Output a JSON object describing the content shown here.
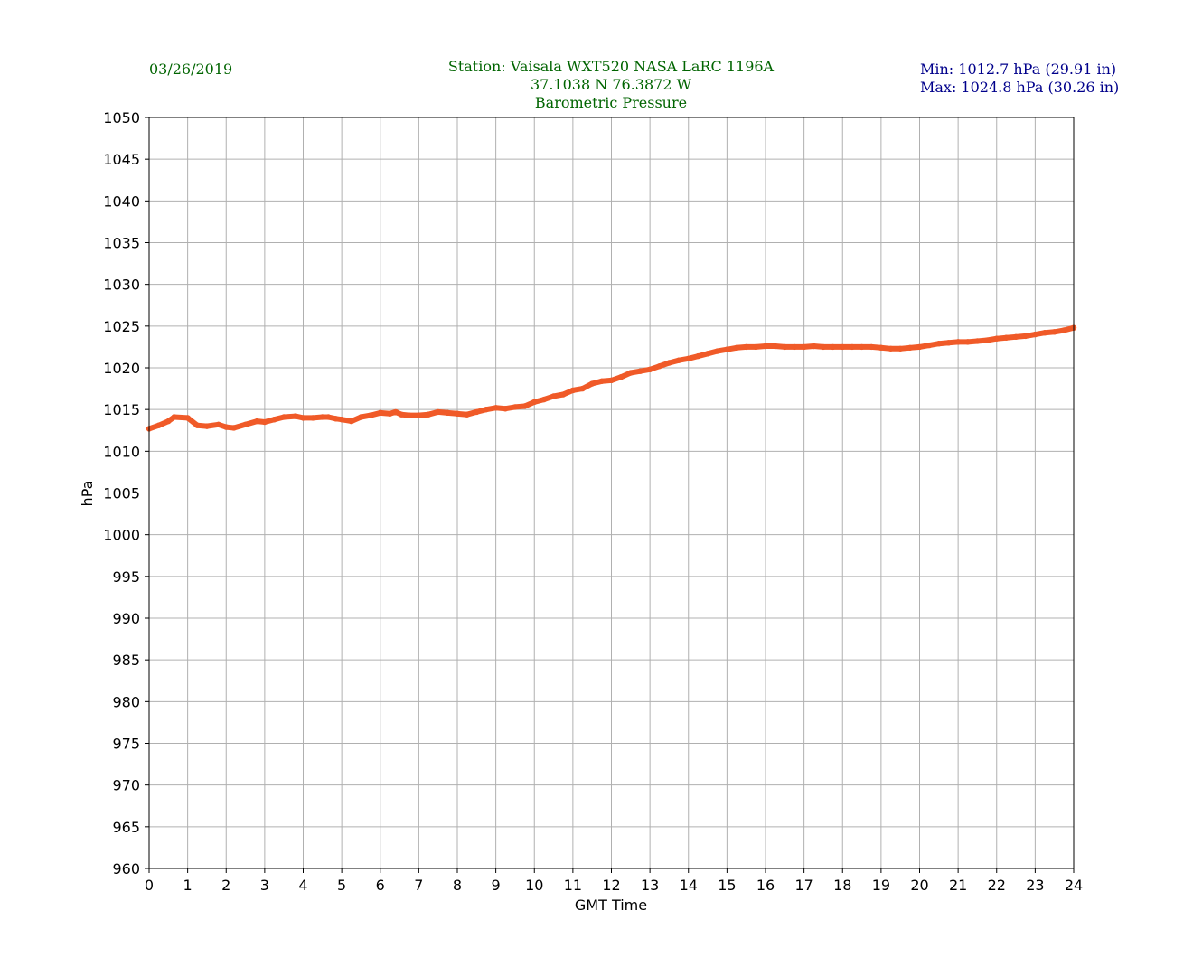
{
  "header": {
    "date": "03/26/2019",
    "title_lines": [
      "Station:  Vaisala WXT520  NASA LaRC 1196A",
      "37.1038 N 76.3872 W",
      "Barometric Pressure"
    ],
    "min_text": "Min: 1012.7 hPa (29.91 in)",
    "max_text": "Max: 1024.8 hPa (30.26 in)",
    "colors": {
      "title": "#006400",
      "stats": "#00008b"
    }
  },
  "chart_data": {
    "type": "line",
    "title": "Barometric Pressure",
    "xlabel": "GMT Time",
    "ylabel": "hPa",
    "xlim": [
      0,
      24
    ],
    "ylim": [
      960,
      1050
    ],
    "x_ticks": [
      0,
      1,
      2,
      3,
      4,
      5,
      6,
      7,
      8,
      9,
      10,
      11,
      12,
      13,
      14,
      15,
      16,
      17,
      18,
      19,
      20,
      21,
      22,
      23,
      24
    ],
    "y_ticks": [
      960,
      965,
      970,
      975,
      980,
      985,
      990,
      995,
      1000,
      1005,
      1010,
      1015,
      1020,
      1025,
      1030,
      1035,
      1040,
      1045,
      1050
    ],
    "grid": true,
    "line_color": "#f05a28",
    "series": [
      {
        "x": [
          0,
          0.25,
          0.5,
          0.65,
          1,
          1.25,
          1.5,
          1.8,
          2,
          2.2,
          2.5,
          2.8,
          3,
          3.25,
          3.5,
          3.8,
          4,
          4.25,
          4.5,
          4.65,
          4.85,
          5,
          5.25,
          5.5,
          5.75,
          6,
          6.25,
          6.4,
          6.55,
          6.75,
          7,
          7.25,
          7.5,
          7.75,
          8,
          8.25,
          8.5,
          8.75,
          9,
          9.25,
          9.5,
          9.75,
          10,
          10.25,
          10.5,
          10.75,
          11,
          11.25,
          11.5,
          11.75,
          12,
          12.25,
          12.5,
          12.75,
          13,
          13.25,
          13.5,
          13.75,
          14,
          14.25,
          14.5,
          14.75,
          15,
          15.25,
          15.5,
          15.75,
          16,
          16.25,
          16.5,
          16.75,
          17,
          17.25,
          17.5,
          17.75,
          18,
          18.25,
          18.5,
          18.75,
          19,
          19.25,
          19.5,
          19.75,
          20,
          20.25,
          20.5,
          20.75,
          21,
          21.25,
          21.5,
          21.75,
          22,
          22.25,
          22.5,
          22.75,
          23,
          23.25,
          23.5,
          23.75,
          24
        ],
        "y": [
          1012.7,
          1013.1,
          1013.6,
          1014.1,
          1014.0,
          1013.1,
          1013.0,
          1013.2,
          1012.9,
          1012.8,
          1013.2,
          1013.6,
          1013.5,
          1013.8,
          1014.1,
          1014.2,
          1014.0,
          1014.0,
          1014.1,
          1014.1,
          1013.9,
          1013.8,
          1013.6,
          1014.1,
          1014.3,
          1014.6,
          1014.5,
          1014.7,
          1014.4,
          1014.3,
          1014.3,
          1014.4,
          1014.7,
          1014.6,
          1014.5,
          1014.4,
          1014.7,
          1015.0,
          1015.2,
          1015.1,
          1015.3,
          1015.4,
          1015.9,
          1016.2,
          1016.6,
          1016.8,
          1017.3,
          1017.5,
          1018.1,
          1018.4,
          1018.5,
          1018.9,
          1019.4,
          1019.6,
          1019.8,
          1020.2,
          1020.6,
          1020.9,
          1021.1,
          1021.4,
          1021.7,
          1022.0,
          1022.2,
          1022.4,
          1022.5,
          1022.5,
          1022.6,
          1022.6,
          1022.5,
          1022.5,
          1022.5,
          1022.6,
          1022.5,
          1022.5,
          1022.5,
          1022.5,
          1022.5,
          1022.5,
          1022.4,
          1022.3,
          1022.3,
          1022.4,
          1022.5,
          1022.7,
          1022.9,
          1023.0,
          1023.1,
          1023.1,
          1023.2,
          1023.3,
          1023.5,
          1023.6,
          1023.7,
          1023.8,
          1024.0,
          1024.2,
          1024.3,
          1024.5,
          1024.8
        ]
      }
    ]
  }
}
